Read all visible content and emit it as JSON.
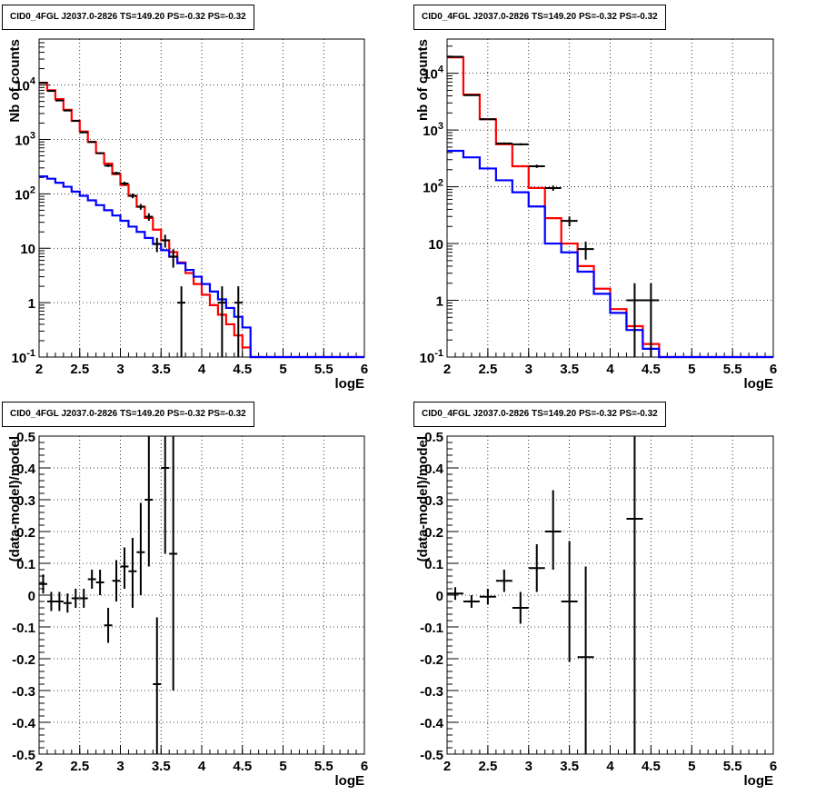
{
  "chart_data": [
    {
      "type": "line",
      "title": "CID0_4FGL J2037.0-2826 TS=149.20 PS=-0.32 PS=-0.32",
      "xlabel": "logE",
      "ylabel": "Nb of counts",
      "xlim": [
        2,
        6
      ],
      "ylim": [
        0.1,
        70000
      ],
      "yscale": "log",
      "grid": true,
      "x_ticks": [
        "2",
        "2.5",
        "3",
        "3.5",
        "4",
        "4.5",
        "5",
        "5.5",
        "6"
      ],
      "y_ticks": [
        "10^-1",
        "1",
        "10",
        "10^2",
        "10^3",
        "10^4"
      ],
      "bin_edges": [
        2.0,
        2.1,
        2.2,
        2.3,
        2.4,
        2.5,
        2.6,
        2.7,
        2.8,
        2.9,
        3.0,
        3.1,
        3.2,
        3.3,
        3.4,
        3.5,
        3.6,
        3.7,
        3.8,
        3.9,
        4.0,
        4.1,
        4.2,
        4.3,
        4.4,
        4.5,
        4.6,
        4.7,
        4.8,
        4.9,
        5.0,
        5.1,
        5.2,
        5.3,
        5.4,
        5.5,
        5.6,
        5.7,
        5.8,
        5.9,
        6.0
      ],
      "series": [
        {
          "color": "#ff0000",
          "values": [
            11000,
            8000,
            5500,
            3500,
            2200,
            1400,
            900,
            560,
            360,
            230,
            145,
            92,
            58,
            36,
            22,
            14,
            8.5,
            5.5,
            3.5,
            2.2,
            1.4,
            0.9,
            0.6,
            0.4,
            0.25,
            0.15,
            0.1,
            0.1,
            0.1,
            0.1,
            0.1,
            0.1,
            0.1,
            0.1,
            0.1,
            0.1,
            0.1,
            0.1,
            0.1,
            0.1
          ]
        },
        {
          "color": "#0000ff",
          "values": [
            210,
            190,
            160,
            135,
            110,
            92,
            76,
            62,
            50,
            40,
            32,
            25,
            20,
            15.5,
            12,
            9.2,
            7,
            5.3,
            4,
            3,
            2.2,
            1.6,
            1.15,
            0.8,
            0.55,
            0.35,
            0.1,
            0.1,
            0.1,
            0.1,
            0.1,
            0.1,
            0.1,
            0.1,
            0.1,
            0.1,
            0.1,
            0.1,
            0.1,
            0.1
          ]
        }
      ],
      "points": [
        {
          "x": 2.05,
          "y": 11000,
          "xerr": 0.05,
          "ylo": 10900,
          "yhi": 11100
        },
        {
          "x": 2.15,
          "y": 7800,
          "xerr": 0.05,
          "ylo": 7700,
          "yhi": 7900
        },
        {
          "x": 2.25,
          "y": 5200,
          "xerr": 0.05,
          "ylo": 5130,
          "yhi": 5270
        },
        {
          "x": 2.35,
          "y": 3400,
          "xerr": 0.05,
          "ylo": 3340,
          "yhi": 3460
        },
        {
          "x": 2.45,
          "y": 2200,
          "xerr": 0.05,
          "ylo": 2150,
          "yhi": 2250
        },
        {
          "x": 2.55,
          "y": 1350,
          "xerr": 0.05,
          "ylo": 1310,
          "yhi": 1390
        },
        {
          "x": 2.65,
          "y": 900,
          "xerr": 0.05,
          "ylo": 870,
          "yhi": 930
        },
        {
          "x": 2.75,
          "y": 560,
          "xerr": 0.05,
          "ylo": 537,
          "yhi": 583
        },
        {
          "x": 2.85,
          "y": 330,
          "xerr": 0.05,
          "ylo": 312,
          "yhi": 348
        },
        {
          "x": 2.95,
          "y": 240,
          "xerr": 0.05,
          "ylo": 225,
          "yhi": 255
        },
        {
          "x": 3.05,
          "y": 155,
          "xerr": 0.05,
          "ylo": 143,
          "yhi": 167
        },
        {
          "x": 3.15,
          "y": 92,
          "xerr": 0.05,
          "ylo": 83,
          "yhi": 101
        },
        {
          "x": 3.25,
          "y": 58,
          "xerr": 0.05,
          "ylo": 51,
          "yhi": 65
        },
        {
          "x": 3.35,
          "y": 38,
          "xerr": 0.05,
          "ylo": 32,
          "yhi": 44
        },
        {
          "x": 3.45,
          "y": 12,
          "xerr": 0.05,
          "ylo": 8.5,
          "yhi": 15.5
        },
        {
          "x": 3.55,
          "y": 14,
          "xerr": 0.05,
          "ylo": 10.3,
          "yhi": 17.7
        },
        {
          "x": 3.65,
          "y": 7,
          "xerr": 0.05,
          "ylo": 4.4,
          "yhi": 9.6
        },
        {
          "x": 3.75,
          "y": 1,
          "xerr": 0.05,
          "ylo": 0.1,
          "yhi": 2
        },
        {
          "x": 4.25,
          "y": 1,
          "xerr": 0.05,
          "ylo": 0.1,
          "yhi": 2
        },
        {
          "x": 4.45,
          "y": 1,
          "xerr": 0.05,
          "ylo": 0.1,
          "yhi": 2
        }
      ]
    },
    {
      "type": "line",
      "title": "CID0_4FGL J2037.0-2826 TS=149.20 PS=-0.32 PS=-0.32",
      "xlabel": "logE",
      "ylabel": "nb of counts",
      "xlim": [
        2,
        6
      ],
      "ylim": [
        0.1,
        40000
      ],
      "yscale": "log",
      "grid": true,
      "x_ticks": [
        "2",
        "2.5",
        "3",
        "3.5",
        "4",
        "4.5",
        "5",
        "5.5",
        "6"
      ],
      "y_ticks": [
        "10^-1",
        "1",
        "10",
        "10^2",
        "10^3",
        "10^4"
      ],
      "bin_edges": [
        2.0,
        2.2,
        2.4,
        2.6,
        2.8,
        3.0,
        3.2,
        3.4,
        3.6,
        3.8,
        4.0,
        4.2,
        4.4,
        4.6,
        4.8,
        5.0,
        5.2,
        5.4,
        5.6,
        5.8,
        6.0
      ],
      "series": [
        {
          "color": "#ff0000",
          "values": [
            19000,
            4200,
            1550,
            560,
            230,
            95,
            28,
            10,
            4,
            1.6,
            0.7,
            0.35,
            0.17,
            0.1,
            0.1,
            0.1,
            0.1,
            0.1,
            0.1,
            0.1
          ]
        },
        {
          "color": "#0000ff",
          "values": [
            430,
            330,
            210,
            130,
            80,
            45,
            10,
            7,
            3.2,
            1.3,
            0.6,
            0.3,
            0.14,
            0.1,
            0.1,
            0.1,
            0.1,
            0.1,
            0.1,
            0.1
          ]
        }
      ],
      "points": [
        {
          "x": 2.1,
          "y": 19500,
          "xerr": 0.1,
          "ylo": 19360,
          "yhi": 19640
        },
        {
          "x": 2.3,
          "y": 4100,
          "xerr": 0.1,
          "ylo": 4036,
          "yhi": 4164
        },
        {
          "x": 2.5,
          "y": 1550,
          "xerr": 0.1,
          "ylo": 1511,
          "yhi": 1589
        },
        {
          "x": 2.7,
          "y": 580,
          "xerr": 0.1,
          "ylo": 556,
          "yhi": 604
        },
        {
          "x": 2.9,
          "y": 560,
          "xerr": 0.1,
          "ylo": 536,
          "yhi": 584
        },
        {
          "x": 3.1,
          "y": 230,
          "xerr": 0.1,
          "ylo": 215,
          "yhi": 245
        },
        {
          "x": 3.3,
          "y": 95,
          "xerr": 0.1,
          "ylo": 85,
          "yhi": 105
        },
        {
          "x": 3.5,
          "y": 25,
          "xerr": 0.1,
          "ylo": 20,
          "yhi": 30
        },
        {
          "x": 3.7,
          "y": 8,
          "xerr": 0.1,
          "ylo": 5.2,
          "yhi": 10.8
        },
        {
          "x": 4.3,
          "y": 1,
          "xerr": 0.1,
          "ylo": 0.1,
          "yhi": 2
        },
        {
          "x": 4.5,
          "y": 1,
          "xerr": 0.1,
          "ylo": 0.1,
          "yhi": 2
        }
      ]
    },
    {
      "type": "scatter",
      "title": "CID0_4FGL J2037.0-2826 TS=149.20 PS=-0.32 PS=-0.32",
      "xlabel": "logE",
      "ylabel": "(data-model)/model",
      "xlim": [
        2,
        6
      ],
      "ylim": [
        -0.5,
        0.5
      ],
      "grid": true,
      "x_ticks": [
        "2",
        "2.5",
        "3",
        "3.5",
        "4",
        "4.5",
        "5",
        "5.5",
        "6"
      ],
      "y_ticks": [
        "-0.5",
        "-0.4",
        "-0.3",
        "-0.2",
        "-0.1",
        "0",
        "0.1",
        "0.2",
        "0.3",
        "0.4",
        "0.5"
      ],
      "points": [
        {
          "x": 2.05,
          "y": 0.035,
          "xerr": 0.05,
          "ylo": 0.005,
          "yhi": 0.065
        },
        {
          "x": 2.15,
          "y": -0.02,
          "xerr": 0.05,
          "ylo": -0.05,
          "yhi": 0.01
        },
        {
          "x": 2.25,
          "y": -0.02,
          "xerr": 0.05,
          "ylo": -0.05,
          "yhi": 0.01
        },
        {
          "x": 2.35,
          "y": -0.025,
          "xerr": 0.05,
          "ylo": -0.055,
          "yhi": 0.005
        },
        {
          "x": 2.45,
          "y": -0.01,
          "xerr": 0.05,
          "ylo": -0.04,
          "yhi": 0.02
        },
        {
          "x": 2.55,
          "y": -0.01,
          "xerr": 0.05,
          "ylo": -0.04,
          "yhi": 0.02
        },
        {
          "x": 2.65,
          "y": 0.05,
          "xerr": 0.05,
          "ylo": 0.02,
          "yhi": 0.08
        },
        {
          "x": 2.75,
          "y": 0.04,
          "xerr": 0.05,
          "ylo": 0.0,
          "yhi": 0.08
        },
        {
          "x": 2.85,
          "y": -0.095,
          "xerr": 0.05,
          "ylo": -0.15,
          "yhi": -0.04
        },
        {
          "x": 2.95,
          "y": 0.045,
          "xerr": 0.05,
          "ylo": -0.02,
          "yhi": 0.11
        },
        {
          "x": 3.05,
          "y": 0.09,
          "xerr": 0.05,
          "ylo": 0.02,
          "yhi": 0.15
        },
        {
          "x": 3.15,
          "y": 0.075,
          "xerr": 0.05,
          "ylo": -0.04,
          "yhi": 0.18
        },
        {
          "x": 3.25,
          "y": 0.135,
          "xerr": 0.05,
          "ylo": 0.0,
          "yhi": 0.29
        },
        {
          "x": 3.35,
          "y": 0.3,
          "xerr": 0.05,
          "ylo": 0.09,
          "yhi": 0.5
        },
        {
          "x": 3.45,
          "y": -0.28,
          "xerr": 0.05,
          "ylo": -0.5,
          "yhi": -0.07
        },
        {
          "x": 3.55,
          "y": 0.4,
          "xerr": 0.05,
          "ylo": 0.13,
          "yhi": 0.5
        },
        {
          "x": 3.65,
          "y": 0.13,
          "xerr": 0.05,
          "ylo": -0.3,
          "yhi": 0.5
        }
      ]
    },
    {
      "type": "scatter",
      "title": "CID0_4FGL J2037.0-2826 TS=149.20 PS=-0.32 PS=-0.32",
      "xlabel": "logE",
      "ylabel": "(data-model)/model",
      "xlim": [
        2,
        6
      ],
      "ylim": [
        -0.5,
        0.5
      ],
      "grid": true,
      "x_ticks": [
        "2",
        "2.5",
        "3",
        "3.5",
        "4",
        "4.5",
        "5",
        "5.5",
        "6"
      ],
      "y_ticks": [
        "-0.5",
        "-0.4",
        "-0.3",
        "-0.2",
        "-0.1",
        "0",
        "0.1",
        "0.2",
        "0.3",
        "0.4",
        "0.5"
      ],
      "points": [
        {
          "x": 2.1,
          "y": 0.005,
          "xerr": 0.1,
          "ylo": -0.015,
          "yhi": 0.025
        },
        {
          "x": 2.3,
          "y": -0.02,
          "xerr": 0.1,
          "ylo": -0.04,
          "yhi": 0.0
        },
        {
          "x": 2.5,
          "y": -0.005,
          "xerr": 0.1,
          "ylo": -0.03,
          "yhi": 0.02
        },
        {
          "x": 2.7,
          "y": 0.045,
          "xerr": 0.1,
          "ylo": 0.01,
          "yhi": 0.08
        },
        {
          "x": 2.9,
          "y": -0.04,
          "xerr": 0.1,
          "ylo": -0.09,
          "yhi": 0.01
        },
        {
          "x": 3.1,
          "y": 0.085,
          "xerr": 0.1,
          "ylo": 0.01,
          "yhi": 0.16
        },
        {
          "x": 3.3,
          "y": 0.2,
          "xerr": 0.1,
          "ylo": 0.08,
          "yhi": 0.33
        },
        {
          "x": 3.5,
          "y": -0.02,
          "xerr": 0.1,
          "ylo": -0.21,
          "yhi": 0.17
        },
        {
          "x": 3.7,
          "y": -0.195,
          "xerr": 0.1,
          "ylo": -0.5,
          "yhi": 0.09
        },
        {
          "x": 4.3,
          "y": 0.24,
          "xerr": 0.1,
          "ylo": -0.5,
          "yhi": 0.5
        }
      ]
    }
  ]
}
